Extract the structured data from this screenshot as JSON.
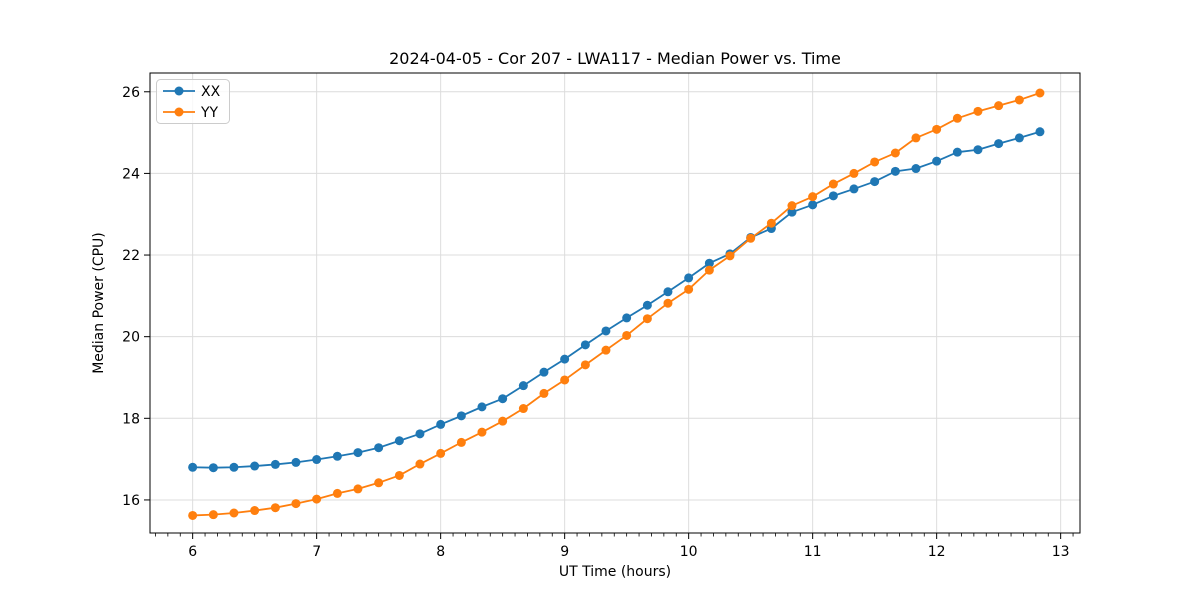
{
  "chart_data": {
    "type": "line",
    "title": "2024-04-05 - Cor 207 - LWA117 - Median Power vs. Time",
    "xlabel": "UT Time (hours)",
    "ylabel": "Median Power (CPU)",
    "xlim": [
      5.656,
      13.156
    ],
    "ylim": [
      15.19,
      26.46
    ],
    "x_ticks": [
      6,
      7,
      8,
      9,
      10,
      11,
      12,
      13
    ],
    "y_ticks": [
      16,
      18,
      20,
      22,
      24,
      26
    ],
    "x_minor_tick_step": 0.1,
    "grid": true,
    "grid_color": "#dcdcdc",
    "legend_position": "upper left",
    "x": [
      6,
      6.167,
      6.333,
      6.5,
      6.667,
      6.833,
      7,
      7.167,
      7.333,
      7.5,
      7.667,
      7.833,
      8,
      8.167,
      8.333,
      8.5,
      8.667,
      8.833,
      9,
      9.167,
      9.333,
      9.5,
      9.667,
      9.833,
      10,
      10.167,
      10.333,
      10.5,
      10.667,
      10.833,
      11,
      11.167,
      11.333,
      11.5,
      11.667,
      11.833,
      12,
      12.167,
      12.333,
      12.5,
      12.667,
      12.833
    ],
    "series": [
      {
        "name": "XX",
        "color": "#1f77b4",
        "values": [
          16.8,
          16.79,
          16.8,
          16.83,
          16.87,
          16.92,
          16.99,
          17.07,
          17.16,
          17.28,
          17.45,
          17.62,
          17.85,
          18.06,
          18.28,
          18.48,
          18.8,
          19.13,
          19.45,
          19.8,
          20.14,
          20.46,
          20.77,
          21.1,
          21.44,
          21.8,
          22.03,
          22.43,
          22.65,
          23.05,
          23.23,
          23.45,
          23.62,
          23.8,
          24.05,
          24.12,
          24.3,
          24.52,
          24.58,
          24.73,
          24.87,
          25.02
        ]
      },
      {
        "name": "YY",
        "color": "#ff7f0e",
        "values": [
          15.62,
          15.64,
          15.68,
          15.74,
          15.81,
          15.91,
          16.02,
          16.16,
          16.27,
          16.42,
          16.6,
          16.88,
          17.14,
          17.41,
          17.66,
          17.93,
          18.24,
          18.61,
          18.94,
          19.31,
          19.67,
          20.03,
          20.44,
          20.82,
          21.16,
          21.63,
          21.98,
          22.41,
          22.78,
          23.21,
          23.43,
          23.74,
          24.0,
          24.28,
          24.5,
          24.87,
          25.08,
          25.35,
          25.52,
          25.66,
          25.8,
          25.97
        ]
      }
    ]
  }
}
